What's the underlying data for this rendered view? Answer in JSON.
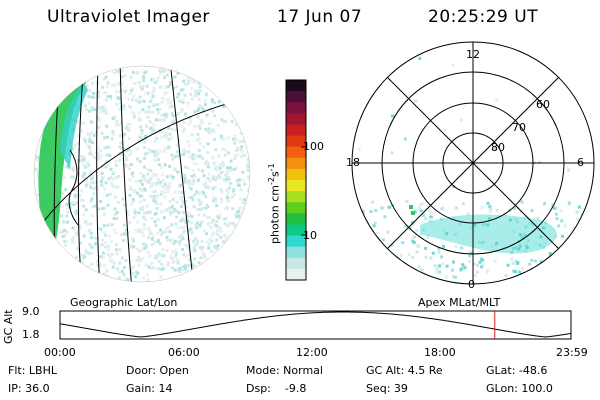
{
  "header": {
    "instrument": "Ultraviolet Imager",
    "date": "17 Jun 07",
    "time": "20:25:29 UT"
  },
  "colorbar": {
    "unit_text": "photon cm",
    "unit_exp1": "-2",
    "unit_mid": "s",
    "unit_exp2": "-1",
    "ticks": [
      "100",
      "10"
    ],
    "colors": [
      "#1a0a1a",
      "#4a1038",
      "#7a1040",
      "#a01830",
      "#c82020",
      "#e03a10",
      "#f06010",
      "#f49010",
      "#f4c010",
      "#e8e820",
      "#a8e020",
      "#60d020",
      "#20c040",
      "#10c888",
      "#30d8d0",
      "#90e0e0",
      "#c8e8e8",
      "#e8f0f0"
    ]
  },
  "panels": {
    "left_caption": "Geographic Lat/Lon",
    "right_caption": "Apex MLat/MLT"
  },
  "polar": {
    "mlt_labels": {
      "top": "12",
      "left": "18",
      "right": "6",
      "bottom": "0"
    },
    "lat_labels": [
      "60",
      "70",
      "80"
    ]
  },
  "orbit": {
    "ylabel": "GC Alt",
    "y_ticks": [
      "9.0",
      "1.8"
    ],
    "x_ticks": [
      "00:00",
      "06:00",
      "12:00",
      "18:00",
      "23:59"
    ],
    "current_marker_hours": 20.42,
    "marker_color": "#d02020"
  },
  "status": {
    "flt": "Flt: LBHL",
    "ip": "IP: 36.0",
    "door": "Door: Open",
    "gain": "Gain: 14",
    "mode": "Mode: Normal",
    "dsp": "Dsp:    -9.8",
    "gc_alt": "GC Alt: 4.5 Re",
    "seq": "Seq: 39",
    "glat": "GLat: -48.6",
    "glon": "GLon: 100.0"
  }
}
